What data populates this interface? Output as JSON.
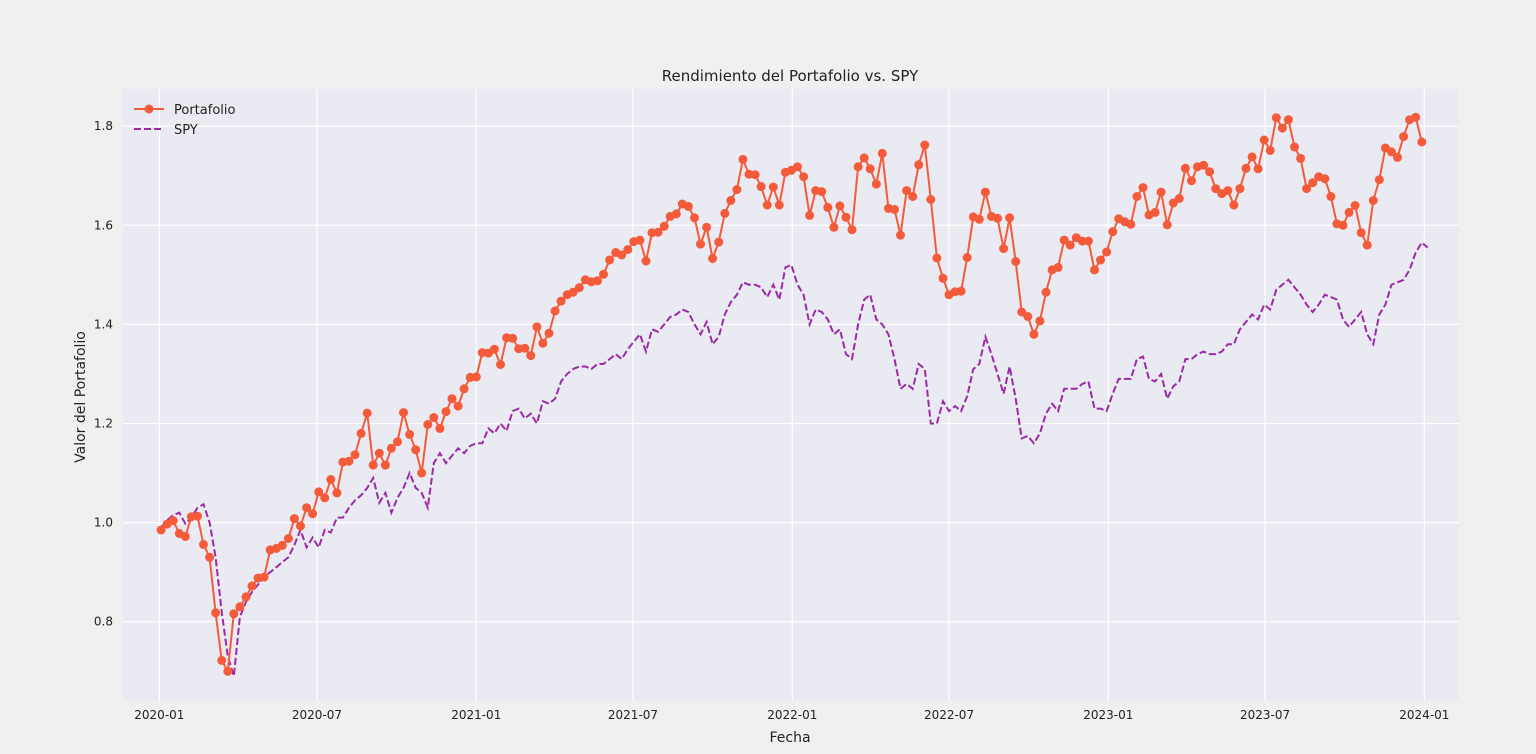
{
  "chart_data": {
    "type": "line",
    "title": "Rendimiento del Portafolio vs. SPY",
    "xlabel": "Fecha",
    "ylabel": "Valor del Portafolio",
    "xlim": [
      "2019-11-20",
      "2024-02-10"
    ],
    "ylim": [
      0.64,
      1.875
    ],
    "x_ticks": [
      "2020-01",
      "2020-07",
      "2021-01",
      "2021-07",
      "2022-01",
      "2022-07",
      "2023-01",
      "2023-07",
      "2024-01"
    ],
    "y_ticks": [
      "0.8",
      "1.0",
      "1.2",
      "1.4",
      "1.6",
      "1.8"
    ],
    "grid": true,
    "legend_position": "top-left",
    "colors": {
      "portfolio": "#f45b3a",
      "spy": "#9b2aa6",
      "plot_bg": "#eaeaf2",
      "figure_bg": "#f0f0f0",
      "grid": "#ffffff"
    },
    "series": [
      {
        "name": "Portafolio",
        "style": "solid-markers",
        "values": [
          0.985,
          0.997,
          1.004,
          0.978,
          0.972,
          1.012,
          1.013,
          0.956,
          0.93,
          0.818,
          0.722,
          0.7,
          0.816,
          0.83,
          0.85,
          0.872,
          0.888,
          0.89,
          0.945,
          0.948,
          0.954,
          0.968,
          1.008,
          0.993,
          1.03,
          1.018,
          1.062,
          1.05,
          1.087,
          1.06,
          1.122,
          1.124,
          1.137,
          1.18,
          1.221,
          1.116,
          1.14,
          1.116,
          1.15,
          1.163,
          1.222,
          1.178,
          1.147,
          1.1,
          1.198,
          1.212,
          1.19,
          1.224,
          1.25,
          1.235,
          1.27,
          1.293,
          1.294,
          1.343,
          1.342,
          1.35,
          1.319,
          1.373,
          1.372,
          1.351,
          1.352,
          1.337,
          1.395,
          1.362,
          1.382,
          1.427,
          1.447,
          1.46,
          1.465,
          1.474,
          1.49,
          1.486,
          1.488,
          1.501,
          1.53,
          1.545,
          1.54,
          1.551,
          1.567,
          1.57,
          1.528,
          1.585,
          1.586,
          1.598,
          1.618,
          1.623,
          1.643,
          1.638,
          1.615,
          1.562,
          1.596,
          1.533,
          1.566,
          1.624,
          1.65,
          1.672,
          1.733,
          1.703,
          1.702,
          1.678,
          1.641,
          1.677,
          1.641,
          1.707,
          1.711,
          1.718,
          1.698,
          1.62,
          1.67,
          1.668,
          1.636,
          1.596,
          1.639,
          1.616,
          1.591,
          1.718,
          1.736,
          1.714,
          1.683,
          1.745,
          1.634,
          1.632,
          1.58,
          1.67,
          1.658,
          1.722,
          1.762,
          1.652,
          1.534,
          1.493,
          1.46,
          1.466,
          1.467,
          1.535,
          1.617,
          1.612,
          1.667,
          1.618,
          1.614,
          1.553,
          1.615,
          1.527,
          1.425,
          1.416,
          1.38,
          1.407,
          1.465,
          1.51,
          1.515,
          1.57,
          1.56,
          1.575,
          1.568,
          1.568,
          1.51,
          1.53,
          1.546,
          1.587,
          1.613,
          1.607,
          1.602,
          1.658,
          1.676,
          1.621,
          1.626,
          1.667,
          1.601,
          1.645,
          1.654,
          1.715,
          1.69,
          1.718,
          1.721,
          1.708,
          1.674,
          1.664,
          1.67,
          1.641,
          1.674,
          1.715,
          1.738,
          1.714,
          1.772,
          1.751,
          1.817,
          1.796,
          1.813,
          1.758,
          1.735,
          1.674,
          1.686,
          1.698,
          1.694,
          1.658,
          1.603,
          1.6,
          1.626,
          1.64,
          1.585,
          1.56,
          1.65,
          1.692,
          1.756,
          1.748,
          1.737,
          1.779,
          1.813,
          1.818,
          1.768
        ]
      },
      {
        "name": "SPY",
        "style": "dashed",
        "values": [
          0.99,
          1.005,
          1.015,
          1.02,
          0.998,
          1.01,
          1.03,
          1.037,
          1.0,
          0.93,
          0.82,
          0.73,
          0.69,
          0.81,
          0.84,
          0.86,
          0.875,
          0.89,
          0.9,
          0.91,
          0.92,
          0.93,
          0.955,
          0.985,
          0.95,
          0.97,
          0.95,
          0.985,
          0.98,
          1.01,
          1.01,
          1.03,
          1.045,
          1.055,
          1.07,
          1.09,
          1.04,
          1.06,
          1.02,
          1.05,
          1.07,
          1.1,
          1.07,
          1.06,
          1.03,
          1.12,
          1.14,
          1.12,
          1.135,
          1.15,
          1.14,
          1.155,
          1.16,
          1.16,
          1.19,
          1.18,
          1.2,
          1.185,
          1.225,
          1.23,
          1.21,
          1.22,
          1.2,
          1.245,
          1.24,
          1.25,
          1.285,
          1.3,
          1.31,
          1.315,
          1.315,
          1.31,
          1.32,
          1.32,
          1.33,
          1.34,
          1.33,
          1.35,
          1.365,
          1.38,
          1.345,
          1.39,
          1.385,
          1.4,
          1.415,
          1.42,
          1.43,
          1.425,
          1.4,
          1.38,
          1.405,
          1.36,
          1.375,
          1.42,
          1.445,
          1.46,
          1.485,
          1.48,
          1.48,
          1.475,
          1.455,
          1.48,
          1.45,
          1.515,
          1.52,
          1.48,
          1.46,
          1.4,
          1.43,
          1.425,
          1.41,
          1.38,
          1.39,
          1.34,
          1.33,
          1.4,
          1.45,
          1.46,
          1.41,
          1.4,
          1.38,
          1.33,
          1.27,
          1.28,
          1.27,
          1.32,
          1.31,
          1.2,
          1.2,
          1.245,
          1.225,
          1.235,
          1.225,
          1.255,
          1.31,
          1.32,
          1.375,
          1.34,
          1.3,
          1.26,
          1.315,
          1.25,
          1.17,
          1.175,
          1.16,
          1.18,
          1.22,
          1.24,
          1.225,
          1.27,
          1.27,
          1.27,
          1.28,
          1.285,
          1.23,
          1.23,
          1.225,
          1.26,
          1.29,
          1.29,
          1.29,
          1.33,
          1.335,
          1.29,
          1.285,
          1.3,
          1.25,
          1.275,
          1.285,
          1.33,
          1.33,
          1.34,
          1.345,
          1.34,
          1.34,
          1.345,
          1.36,
          1.36,
          1.39,
          1.405,
          1.42,
          1.41,
          1.44,
          1.43,
          1.47,
          1.48,
          1.49,
          1.475,
          1.46,
          1.44,
          1.425,
          1.44,
          1.46,
          1.455,
          1.45,
          1.41,
          1.395,
          1.41,
          1.425,
          1.38,
          1.36,
          1.42,
          1.44,
          1.48,
          1.485,
          1.49,
          1.51,
          1.545,
          1.565,
          1.555
        ]
      }
    ]
  }
}
